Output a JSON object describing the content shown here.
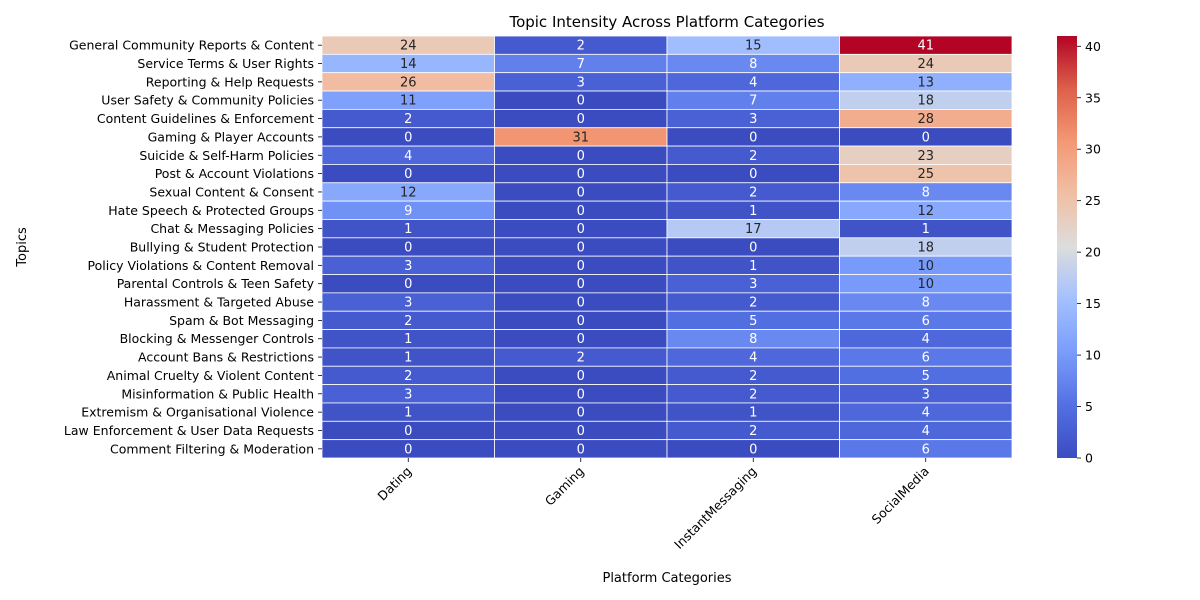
{
  "chart_data": {
    "type": "heatmap",
    "title": "Topic Intensity Across Platform Categories",
    "xlabel": "Platform Categories",
    "ylabel": "Topics",
    "columns": [
      "Dating",
      "Gaming",
      "InstantMessaging",
      "SocialMedia"
    ],
    "rows": [
      "General Community Reports & Content",
      "Service Terms & User Rights",
      "Reporting & Help Requests",
      "User Safety & Community Policies",
      "Content Guidelines & Enforcement",
      "Gaming & Player Accounts",
      "Suicide & Self-Harm Policies",
      "Post & Account Violations",
      "Sexual Content & Consent",
      "Hate Speech & Protected Groups",
      "Chat & Messaging Policies",
      "Bullying & Student Protection",
      "Policy Violations & Content Removal",
      "Parental Controls & Teen Safety",
      "Harassment & Targeted Abuse",
      "Spam & Bot Messaging",
      "Blocking & Messenger Controls",
      "Account Bans & Restrictions",
      "Animal Cruelty & Violent Content",
      "Misinformation & Public Health",
      "Extremism & Organisational Violence",
      "Law Enforcement & User Data Requests",
      "Comment Filtering & Moderation"
    ],
    "values": [
      [
        24,
        2,
        15,
        41
      ],
      [
        14,
        7,
        8,
        24
      ],
      [
        26,
        3,
        4,
        13
      ],
      [
        11,
        0,
        7,
        18
      ],
      [
        2,
        0,
        3,
        28
      ],
      [
        0,
        31,
        0,
        0
      ],
      [
        4,
        0,
        2,
        23
      ],
      [
        0,
        0,
        0,
        25
      ],
      [
        12,
        0,
        2,
        8
      ],
      [
        9,
        0,
        1,
        12
      ],
      [
        1,
        0,
        17,
        1
      ],
      [
        0,
        0,
        0,
        18
      ],
      [
        3,
        0,
        1,
        10
      ],
      [
        0,
        0,
        3,
        10
      ],
      [
        3,
        0,
        2,
        8
      ],
      [
        2,
        0,
        5,
        6
      ],
      [
        1,
        0,
        8,
        4
      ],
      [
        1,
        2,
        4,
        6
      ],
      [
        2,
        0,
        2,
        5
      ],
      [
        3,
        0,
        2,
        3
      ],
      [
        1,
        0,
        1,
        4
      ],
      [
        0,
        0,
        2,
        4
      ],
      [
        0,
        0,
        0,
        6
      ]
    ],
    "colorbar": {
      "min": 0,
      "max": 41,
      "ticks": [
        0,
        5,
        10,
        15,
        20,
        25,
        30,
        35,
        40
      ],
      "colormap": "coolwarm"
    },
    "grid": false,
    "legend": "colorbar-right"
  }
}
